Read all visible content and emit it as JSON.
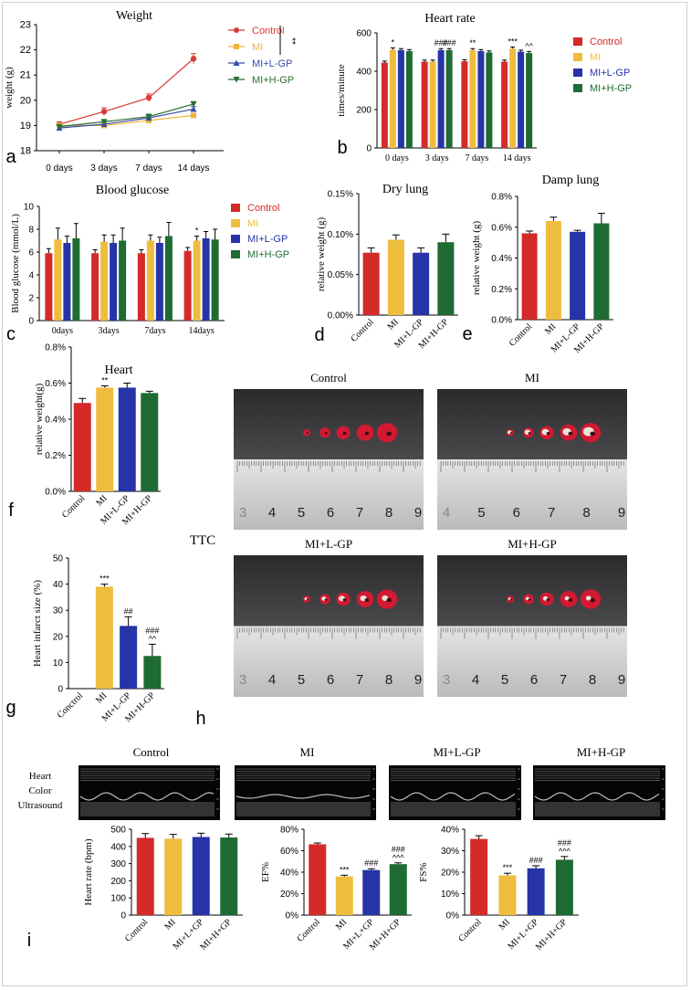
{
  "colors": {
    "control": "#d42a2a",
    "mi": "#efbd3e",
    "mi_l_gp": "#2634a8",
    "mi_h_gp": "#1e6b33",
    "line_control": "#d83a36",
    "line_mi": "#f0b33a",
    "line_l": "#3b4ca8",
    "line_h": "#2a6e34",
    "photo_dark": "#3a3a3c",
    "ruler": "#cfd0d2",
    "tissue": "#d11a32"
  },
  "panel_letters": {
    "a": "a",
    "b": "b",
    "c": "c",
    "d": "d",
    "e": "e",
    "f": "f",
    "g": "g",
    "h": "h",
    "i": "i"
  },
  "groups": [
    "Control",
    "MI",
    "MI+L-GP",
    "MI+H-GP"
  ],
  "chart_data": [
    {
      "id": "a",
      "type": "line",
      "title": "Weight",
      "xlabel": "",
      "ylabel": "weight (g)",
      "x": [
        "0 days",
        "3 days",
        "7 days",
        "14 days"
      ],
      "ylim": [
        18,
        23
      ],
      "yticks": [
        "18",
        "19",
        "20",
        "21",
        "22",
        "23"
      ],
      "series": [
        {
          "name": "Control",
          "marker": "circle",
          "values": [
            19.05,
            19.55,
            20.1,
            21.65
          ],
          "err": [
            0.1,
            0.15,
            0.15,
            0.2
          ]
        },
        {
          "name": "MI",
          "marker": "square",
          "values": [
            19.0,
            19.0,
            19.2,
            19.4
          ],
          "err": [
            0.1,
            0.08,
            0.08,
            0.08
          ]
        },
        {
          "name": "MI+L-GP",
          "marker": "triangle",
          "values": [
            18.9,
            19.05,
            19.3,
            19.65
          ],
          "err": [
            0.08,
            0.08,
            0.1,
            0.1
          ]
        },
        {
          "name": "MI+H-GP",
          "marker": "triangle-down",
          "values": [
            18.95,
            19.15,
            19.35,
            19.85
          ],
          "err": [
            0.08,
            0.08,
            0.1,
            0.1
          ]
        }
      ],
      "annotations": [
        "**"
      ]
    },
    {
      "id": "b",
      "type": "bar",
      "title": "Heart rate",
      "xlabel": "",
      "ylabel": "times/minute",
      "categories": [
        "0 days",
        "3 days",
        "7 days",
        "14 days"
      ],
      "ylim": [
        0,
        600
      ],
      "yticks": [
        "0",
        "200",
        "400",
        "600"
      ],
      "series": [
        {
          "name": "Control",
          "values": [
            445,
            450,
            452,
            450
          ],
          "err": [
            8,
            8,
            8,
            8
          ]
        },
        {
          "name": "MI",
          "values": [
            512,
            450,
            510,
            518
          ],
          "err": [
            10,
            8,
            8,
            8
          ]
        },
        {
          "name": "MI+L-GP",
          "values": [
            510,
            510,
            505,
            502
          ],
          "err": [
            8,
            8,
            8,
            8
          ]
        },
        {
          "name": "MI+H-GP",
          "values": [
            505,
            510,
            498,
            495
          ],
          "err": [
            8,
            8,
            8,
            8
          ]
        }
      ],
      "annotations": [
        {
          "group": 0,
          "bar": 1,
          "text": "*"
        },
        {
          "group": 1,
          "bar": 2,
          "text": "###"
        },
        {
          "group": 1,
          "bar": 3,
          "text": "###"
        },
        {
          "group": 2,
          "bar": 1,
          "text": "**"
        },
        {
          "group": 3,
          "bar": 1,
          "text": "***"
        },
        {
          "group": 3,
          "bar": 3,
          "text": "^^"
        }
      ]
    },
    {
      "id": "c",
      "type": "bar",
      "title": "Blood glucose",
      "xlabel": "",
      "ylabel": "Blood glucose (mmol/L)",
      "categories": [
        "0days",
        "3days",
        "7days",
        "14days"
      ],
      "ylim": [
        0,
        10
      ],
      "yticks": [
        "0",
        "2",
        "4",
        "6",
        "8",
        "10"
      ],
      "series": [
        {
          "name": "Control",
          "values": [
            5.9,
            5.9,
            5.9,
            6.1
          ],
          "err": [
            0.4,
            0.3,
            0.3,
            0.3
          ]
        },
        {
          "name": "MI",
          "values": [
            7.1,
            6.9,
            7.0,
            7.0
          ],
          "err": [
            1.0,
            0.6,
            0.5,
            0.4
          ]
        },
        {
          "name": "MI+L-GP",
          "values": [
            6.8,
            6.8,
            6.8,
            7.2
          ],
          "err": [
            0.6,
            0.7,
            0.5,
            0.6
          ]
        },
        {
          "name": "MI+H-GP",
          "values": [
            7.2,
            7.0,
            7.4,
            7.1
          ],
          "err": [
            1.3,
            1.1,
            1.2,
            0.9
          ]
        }
      ],
      "annotations": [
        {
          "group": 3,
          "bar": 1,
          "text": "*"
        }
      ]
    },
    {
      "id": "d",
      "type": "bar",
      "title": "Dry lung",
      "xlabel": "",
      "ylabel": "relative weight (g)",
      "categories": [
        "Control",
        "MI",
        "MI+L-GP",
        "MI+H-GP"
      ],
      "ylim": [
        0,
        0.15
      ],
      "yticks": [
        "0.00%",
        "0.05%",
        "0.10%",
        "0.15%"
      ],
      "values": [
        0.077,
        0.093,
        0.077,
        0.09
      ],
      "err": [
        0.006,
        0.006,
        0.006,
        0.01
      ]
    },
    {
      "id": "e",
      "type": "bar",
      "title": "Damp lung",
      "xlabel": "",
      "ylabel": "relative weight (g)",
      "categories": [
        "Control",
        "MI",
        "MI+L-GP",
        "MI+H-GP"
      ],
      "ylim": [
        0,
        0.8
      ],
      "yticks": [
        "0.0%",
        "0.2%",
        "0.4%",
        "0.6%",
        "0.8%"
      ],
      "values": [
        0.56,
        0.64,
        0.57,
        0.625
      ],
      "err": [
        0.015,
        0.025,
        0.01,
        0.065
      ]
    },
    {
      "id": "f",
      "type": "bar",
      "title": "Heart",
      "xlabel": "",
      "ylabel": "relative weight(g)",
      "categories": [
        "Control",
        "MI",
        "MI+L-GP",
        "MI+H-GP"
      ],
      "ylim": [
        0,
        0.8
      ],
      "yticks": [
        "0.0%",
        "0.2%",
        "0.4%",
        "0.6%",
        "0.8%"
      ],
      "values": [
        0.49,
        0.575,
        0.575,
        0.545
      ],
      "err": [
        0.025,
        0.01,
        0.025,
        0.01
      ],
      "annotations": [
        {
          "bar": 1,
          "text": "**"
        }
      ]
    },
    {
      "id": "g",
      "type": "bar",
      "title": "",
      "xlabel": "",
      "ylabel": "Heart infarct size (%)",
      "categories": [
        "Conctrol",
        "MI",
        "MI+L-GP",
        "MI+H-GP"
      ],
      "ylim": [
        0,
        50
      ],
      "yticks": [
        "0",
        "10",
        "20",
        "30",
        "40",
        "50"
      ],
      "values": [
        0,
        39,
        24,
        12.5
      ],
      "err": [
        0,
        1,
        3.5,
        4.5
      ],
      "annotations": [
        {
          "bar": 1,
          "text": "***"
        },
        {
          "bar": 2,
          "text": "##"
        },
        {
          "bar": 3,
          "text": "^^"
        },
        {
          "bar": 3,
          "text": "###"
        }
      ]
    },
    {
      "id": "i1",
      "type": "bar",
      "title": "",
      "xlabel": "",
      "ylabel": "Heart rate (bpm)",
      "categories": [
        "Control",
        "MI",
        "MI+L+GP",
        "MI+H+GP"
      ],
      "ylim": [
        0,
        500
      ],
      "yticks": [
        "0",
        "100",
        "200",
        "300",
        "400",
        "500"
      ],
      "values": [
        450,
        445,
        455,
        452
      ],
      "err": [
        25,
        25,
        22,
        20
      ]
    },
    {
      "id": "i2",
      "type": "bar",
      "title": "",
      "xlabel": "",
      "ylabel": "EF%",
      "categories": [
        "Control",
        "MI",
        "MI+L+GP",
        "MI+H+GP"
      ],
      "ylim": [
        0,
        80
      ],
      "yticks": [
        "0%",
        "20%",
        "40%",
        "60%",
        "80%"
      ],
      "values": [
        66,
        36,
        42,
        47.5
      ],
      "err": [
        1.2,
        1.2,
        1.2,
        1.2
      ],
      "annotations": [
        {
          "bar": 1,
          "text": "***"
        },
        {
          "bar": 2,
          "text": "###"
        },
        {
          "bar": 3,
          "text": "^^^"
        },
        {
          "bar": 3,
          "text": "###"
        }
      ]
    },
    {
      "id": "i3",
      "type": "bar",
      "title": "",
      "xlabel": "",
      "ylabel": "FS%",
      "categories": [
        "Control",
        "MI",
        "MI+L+GP",
        "MI+H+GP"
      ],
      "ylim": [
        0,
        40
      ],
      "yticks": [
        "0%",
        "10%",
        "20%",
        "30%",
        "40%"
      ],
      "values": [
        35.5,
        18.5,
        21.8,
        25.8
      ],
      "err": [
        1.5,
        1,
        1.2,
        1.5
      ],
      "annotations": [
        {
          "bar": 1,
          "text": "***"
        },
        {
          "bar": 2,
          "text": "###"
        },
        {
          "bar": 3,
          "text": "^^^"
        },
        {
          "bar": 3,
          "text": "###"
        }
      ]
    }
  ],
  "ttc": {
    "label": "TTC",
    "photos": [
      {
        "title": "Control",
        "scale_numbers": [
          "3",
          "4",
          "5",
          "6",
          "7",
          "8",
          "9"
        ],
        "slices": 5,
        "infarct": [
          0,
          0,
          0,
          0,
          0
        ]
      },
      {
        "title": "MI",
        "scale_numbers": [
          "4",
          "5",
          "6",
          "7",
          "8",
          "9"
        ],
        "slices": 5,
        "infarct": [
          0.6,
          0.7,
          0.7,
          0.7,
          0.8
        ]
      },
      {
        "title": "MI+L-GP",
        "scale_numbers": [
          "3",
          "4",
          "5",
          "6",
          "7",
          "8",
          "9"
        ],
        "slices": 5,
        "infarct": [
          0.3,
          0.5,
          0.6,
          0.5,
          0.4
        ]
      },
      {
        "title": "MI+H-GP",
        "scale_numbers": [
          "3",
          "4",
          "5",
          "6",
          "7",
          "8",
          "9"
        ],
        "slices": 5,
        "infarct": [
          0.2,
          0.3,
          0.4,
          0.3,
          0.3
        ]
      }
    ]
  },
  "ultrasound": {
    "row_label": [
      "Heart",
      "Color",
      "Ultrasound"
    ],
    "titles": [
      "Control",
      "MI",
      "MI+L-GP",
      "MI+H-GP"
    ]
  }
}
